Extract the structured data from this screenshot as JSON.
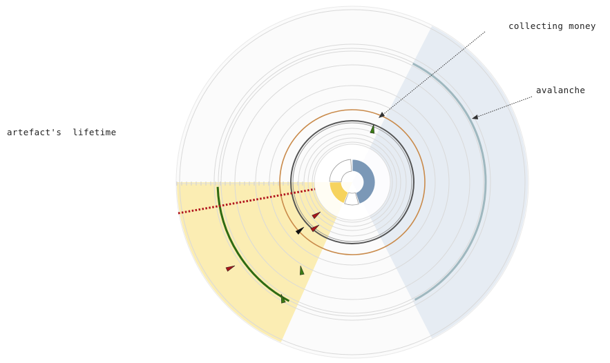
{
  "annotations": {
    "collecting_money": "collecting money",
    "avalanche": "avalanche",
    "artefact_lifetime": "artefact's  lifetime"
  },
  "colors": {
    "blue_sector": "#e6ecf3",
    "yellow_sector": "#fbedb3",
    "teal_ring": "#9fb8bf",
    "orange_ring": "#c98a4a",
    "dark_ring": "#555555",
    "green_arc": "#2e6b12",
    "red_marker": "#a8161b",
    "green_marker": "#3a7a14",
    "center_blue": "#7b98b7",
    "center_yellow": "#f6d35e",
    "dotted_red": "#b0131c",
    "grid_ring": "#d9d9d9"
  },
  "icons": [
    "red-pennant-icon",
    "green-pennant-icon",
    "black-pennant-icon"
  ]
}
